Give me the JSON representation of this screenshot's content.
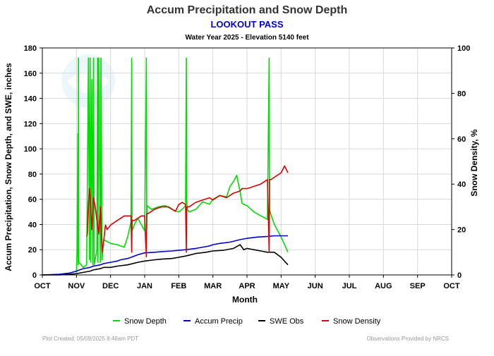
{
  "title": "Accum Precipitation and Snow Depth",
  "subtitle": "LOOKOUT PASS",
  "subtitle2": "Water Year 2025 -  Elevation 5140 feet",
  "footer_left": "Plot Created: 05/09/2025 8:46am PDT",
  "footer_right": "Observations Provided by NRCS",
  "colors": {
    "title": "#333333",
    "subtitle": "#0000dd",
    "snow_depth": "#00dd00",
    "accum_precip": "#0000cc",
    "swe_obs": "#000000",
    "snow_density": "#dd0000",
    "grid": "#d9d9d9",
    "footer": "#999999"
  },
  "chart_data": {
    "type": "line",
    "title": "Accum Precipitation and Snow Depth",
    "xlabel": "Month",
    "ylabel": "Accum Precipitation, Snow Depth, and SWE, inches",
    "y2label": "Snow Density, %",
    "categories": [
      "OCT",
      "NOV",
      "DEC",
      "JAN",
      "FEB",
      "MAR",
      "APR",
      "MAY",
      "JUN",
      "JUL",
      "AUG",
      "SEP",
      "OCT"
    ],
    "ylim": [
      0,
      180
    ],
    "yticks": [
      0,
      20,
      40,
      60,
      80,
      100,
      120,
      140,
      160,
      180
    ],
    "y2lim": [
      0,
      100
    ],
    "y2ticks": [
      0,
      20,
      40,
      60,
      80,
      100
    ],
    "grid": true,
    "legend_position": "bottom",
    "series": [
      {
        "name": "Snow Depth",
        "axis": "left",
        "color": "#00dd00",
        "x": [
          1.0,
          1.02,
          1.04,
          1.05,
          1.06,
          1.07,
          1.2,
          1.3,
          1.35,
          1.38,
          1.4,
          1.42,
          1.45,
          1.48,
          1.5,
          1.52,
          1.6,
          1.62,
          1.63,
          1.65,
          1.7,
          1.72,
          1.75,
          1.8,
          2.0,
          2.2,
          2.4,
          2.5,
          2.6,
          2.62,
          2.63,
          2.7,
          2.8,
          3.0,
          3.05,
          3.06,
          3.07,
          3.2,
          3.4,
          3.6,
          3.8,
          4.0,
          4.1,
          4.2,
          4.22,
          4.23,
          4.25,
          4.3,
          4.5,
          4.7,
          4.9,
          5.0,
          5.2,
          5.4,
          5.5,
          5.6,
          5.7,
          5.75,
          5.8,
          5.85,
          5.9,
          6.0,
          6.2,
          6.4,
          6.6,
          6.65,
          6.66,
          6.7,
          6.8,
          7.0,
          7.1,
          7.2
        ],
        "values": [
          2,
          20,
          112,
          8,
          172,
          10,
          6,
          8,
          172,
          12,
          172,
          10,
          155,
          8,
          172,
          8,
          20,
          172,
          10,
          172,
          10,
          172,
          12,
          28,
          25,
          24,
          22,
          30,
          42,
          172,
          35,
          40,
          45,
          35,
          172,
          38,
          55,
          52,
          54,
          55,
          52,
          50,
          52,
          55,
          172,
          60,
          52,
          50,
          52,
          58,
          56,
          60,
          63,
          62,
          70,
          74,
          79,
          72,
          66,
          57,
          56,
          55,
          50,
          47,
          44,
          172,
          52,
          48,
          40,
          30,
          24,
          18
        ]
      },
      {
        "name": "Accum Precip",
        "axis": "left",
        "color": "#0000cc",
        "x": [
          0.0,
          0.5,
          0.8,
          1.0,
          1.1,
          1.2,
          1.4,
          1.5,
          1.7,
          1.8,
          2.0,
          2.2,
          2.3,
          2.5,
          2.6,
          2.8,
          3.0,
          3.3,
          3.5,
          3.8,
          4.0,
          4.2,
          4.5,
          4.7,
          4.9,
          5.0,
          5.2,
          5.5,
          5.8,
          6.0,
          6.3,
          6.6,
          6.8,
          7.0,
          7.2
        ],
        "values": [
          0,
          0.5,
          1.5,
          3,
          4,
          5,
          6,
          7,
          8,
          9,
          10,
          11,
          12,
          13,
          14,
          16,
          17.5,
          18,
          18.5,
          19,
          19.5,
          20,
          21,
          22,
          23,
          24,
          25,
          26,
          28,
          29,
          30,
          30.5,
          31,
          31,
          31
        ]
      },
      {
        "name": "SWE Obs",
        "axis": "left",
        "color": "#000000",
        "x": [
          0.0,
          0.5,
          0.8,
          1.0,
          1.2,
          1.4,
          1.5,
          1.7,
          1.8,
          2.0,
          2.2,
          2.5,
          2.8,
          3.0,
          3.3,
          3.5,
          3.8,
          4.0,
          4.2,
          4.5,
          4.8,
          5.0,
          5.3,
          5.6,
          5.8,
          5.85,
          5.9,
          6.0,
          6.2,
          6.4,
          6.6,
          6.8,
          7.0,
          7.2
        ],
        "values": [
          0,
          0,
          0.5,
          1,
          2,
          3,
          4,
          5,
          6,
          6,
          7,
          8,
          10,
          11,
          12,
          12.5,
          13,
          14,
          15,
          17,
          18,
          19,
          19.5,
          21,
          24,
          22,
          20,
          21,
          20,
          19,
          18,
          18,
          14,
          8
        ]
      },
      {
        "name": "Snow Density",
        "axis": "right",
        "color": "#dd0000",
        "x": [
          1.3,
          1.32,
          1.34,
          1.36,
          1.38,
          1.4,
          1.45,
          1.5,
          1.55,
          1.6,
          1.65,
          1.7,
          1.75,
          1.8,
          1.85,
          1.9,
          2.0,
          2.2,
          2.4,
          2.6,
          2.62,
          2.63,
          2.7,
          2.9,
          3.0,
          3.05,
          3.06,
          3.1,
          3.3,
          3.5,
          3.7,
          3.9,
          4.0,
          4.1,
          4.2,
          4.22,
          4.23,
          4.3,
          4.5,
          4.7,
          4.9,
          5.0,
          5.2,
          5.4,
          5.6,
          5.8,
          5.85,
          5.9,
          6.0,
          6.2,
          6.4,
          6.6,
          6.65,
          6.66,
          6.7,
          6.8,
          7.0,
          7.1,
          7.2
        ],
        "values": [
          17,
          18,
          28,
          33,
          38,
          35,
          20,
          34,
          30,
          24,
          18,
          30,
          10,
          15,
          22,
          20,
          22,
          24,
          26,
          26,
          10,
          24,
          24,
          26,
          26,
          8,
          27,
          27,
          29,
          30,
          30,
          28,
          31,
          32,
          31,
          10,
          30,
          30,
          32,
          33,
          34,
          33,
          35,
          34,
          36,
          37,
          38,
          38,
          38,
          39,
          40,
          42,
          10,
          42,
          42,
          43,
          45,
          48,
          45
        ]
      }
    ]
  }
}
